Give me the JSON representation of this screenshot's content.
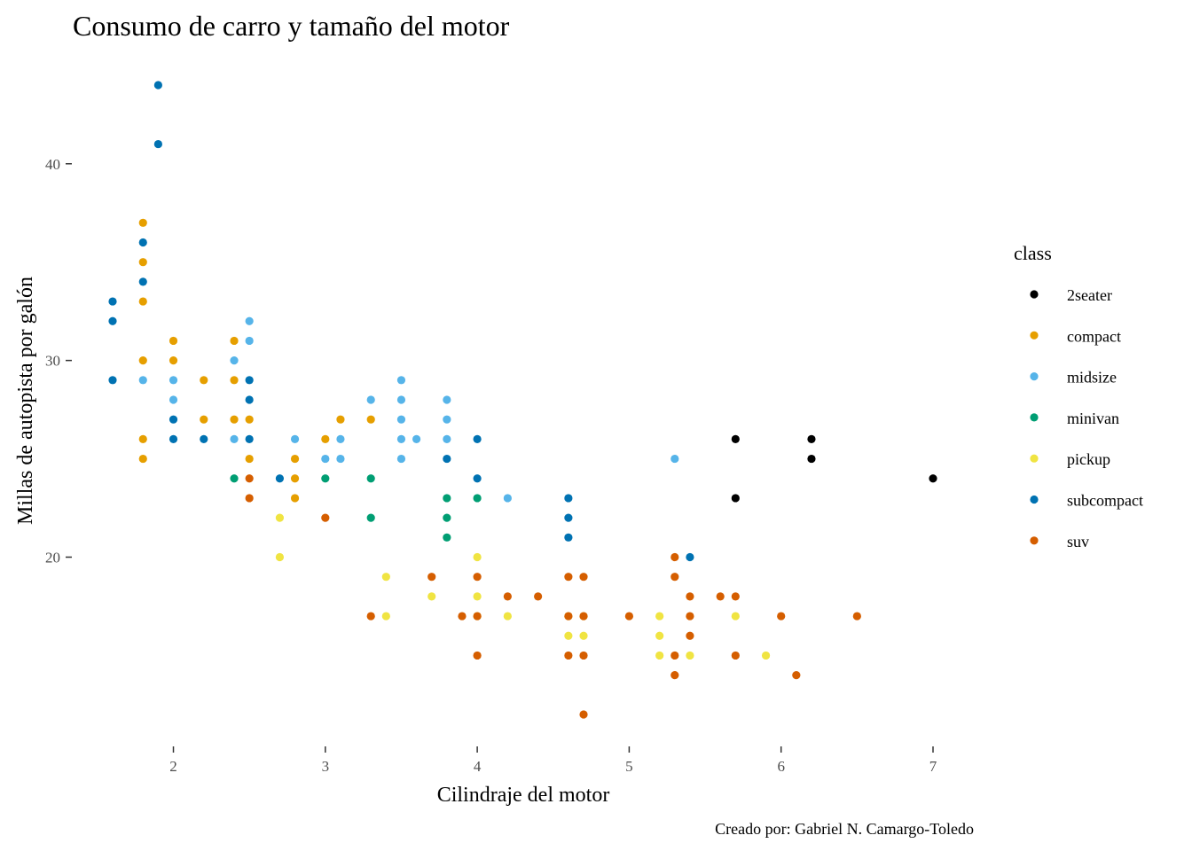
{
  "chart_data": {
    "type": "scatter",
    "title": "Consumo de carro y tamaño del motor",
    "xlabel": "Cilindraje del motor",
    "ylabel": "Millas de autopista por galón",
    "caption": "Creado por: Gabriel N. Camargo-Toledo",
    "xlim": [
      1.6,
      7.0
    ],
    "ylim": [
      12,
      44
    ],
    "x_ticks": [
      2,
      3,
      4,
      5,
      6,
      7
    ],
    "y_ticks": [
      20,
      30,
      40
    ],
    "grid": false,
    "legend": {
      "title": "class",
      "position": "right"
    },
    "series": [
      {
        "name": "2seater",
        "color": "#000000",
        "points": [
          [
            5.7,
            26
          ],
          [
            5.7,
            23
          ],
          [
            6.2,
            26
          ],
          [
            6.2,
            25
          ],
          [
            7.0,
            24
          ]
        ]
      },
      {
        "name": "compact",
        "color": "#E69F00",
        "points": [
          [
            1.8,
            37
          ],
          [
            1.8,
            35
          ],
          [
            1.8,
            33
          ],
          [
            1.8,
            30
          ],
          [
            1.8,
            26
          ],
          [
            1.8,
            25
          ],
          [
            2.0,
            31
          ],
          [
            2.0,
            30
          ],
          [
            2.2,
            29
          ],
          [
            2.2,
            27
          ],
          [
            2.4,
            31
          ],
          [
            2.4,
            29
          ],
          [
            2.4,
            27
          ],
          [
            2.5,
            27
          ],
          [
            2.5,
            25
          ],
          [
            2.8,
            25
          ],
          [
            2.8,
            24
          ],
          [
            2.8,
            23
          ],
          [
            3.0,
            26
          ],
          [
            3.1,
            27
          ],
          [
            3.3,
            27
          ]
        ]
      },
      {
        "name": "midsize",
        "color": "#56B4E9",
        "points": [
          [
            1.8,
            29
          ],
          [
            2.0,
            29
          ],
          [
            2.0,
            28
          ],
          [
            2.4,
            30
          ],
          [
            2.4,
            26
          ],
          [
            2.5,
            32
          ],
          [
            2.5,
            31
          ],
          [
            2.8,
            26
          ],
          [
            3.0,
            25
          ],
          [
            3.1,
            26
          ],
          [
            3.1,
            25
          ],
          [
            3.3,
            28
          ],
          [
            3.5,
            29
          ],
          [
            3.5,
            28
          ],
          [
            3.5,
            27
          ],
          [
            3.5,
            26
          ],
          [
            3.5,
            25
          ],
          [
            3.6,
            26
          ],
          [
            3.8,
            28
          ],
          [
            3.8,
            27
          ],
          [
            3.8,
            26
          ],
          [
            4.2,
            23
          ],
          [
            5.3,
            25
          ]
        ]
      },
      {
        "name": "minivan",
        "color": "#009E73",
        "points": [
          [
            2.4,
            24
          ],
          [
            3.0,
            24
          ],
          [
            3.3,
            24
          ],
          [
            3.3,
            22
          ],
          [
            3.8,
            23
          ],
          [
            3.8,
            22
          ],
          [
            3.8,
            21
          ],
          [
            4.0,
            23
          ]
        ]
      },
      {
        "name": "pickup",
        "color": "#F0E442",
        "points": [
          [
            2.7,
            22
          ],
          [
            2.7,
            20
          ],
          [
            3.4,
            19
          ],
          [
            3.4,
            17
          ],
          [
            3.7,
            18
          ],
          [
            4.0,
            20
          ],
          [
            4.0,
            18
          ],
          [
            4.0,
            17
          ],
          [
            4.2,
            17
          ],
          [
            4.6,
            17
          ],
          [
            4.6,
            16
          ],
          [
            4.7,
            17
          ],
          [
            4.7,
            16
          ],
          [
            5.2,
            17
          ],
          [
            5.2,
            16
          ],
          [
            5.2,
            15
          ],
          [
            5.4,
            15
          ],
          [
            5.7,
            17
          ],
          [
            5.9,
            15
          ]
        ]
      },
      {
        "name": "subcompact",
        "color": "#0072B2",
        "points": [
          [
            1.6,
            33
          ],
          [
            1.6,
            32
          ],
          [
            1.6,
            29
          ],
          [
            1.8,
            36
          ],
          [
            1.8,
            34
          ],
          [
            1.9,
            44
          ],
          [
            1.9,
            41
          ],
          [
            2.0,
            27
          ],
          [
            2.0,
            26
          ],
          [
            2.2,
            26
          ],
          [
            2.5,
            29
          ],
          [
            2.5,
            28
          ],
          [
            2.5,
            26
          ],
          [
            2.7,
            24
          ],
          [
            3.8,
            25
          ],
          [
            4.0,
            26
          ],
          [
            4.0,
            24
          ],
          [
            4.6,
            23
          ],
          [
            4.6,
            22
          ],
          [
            4.6,
            21
          ],
          [
            5.4,
            20
          ]
        ]
      },
      {
        "name": "suv",
        "color": "#D55E00",
        "points": [
          [
            2.5,
            24
          ],
          [
            2.5,
            23
          ],
          [
            3.0,
            22
          ],
          [
            3.3,
            17
          ],
          [
            3.7,
            19
          ],
          [
            3.9,
            17
          ],
          [
            4.0,
            19
          ],
          [
            4.0,
            17
          ],
          [
            4.0,
            15
          ],
          [
            4.2,
            18
          ],
          [
            4.4,
            18
          ],
          [
            4.6,
            19
          ],
          [
            4.6,
            17
          ],
          [
            4.6,
            15
          ],
          [
            4.7,
            19
          ],
          [
            4.7,
            17
          ],
          [
            4.7,
            15
          ],
          [
            4.7,
            12
          ],
          [
            5.0,
            17
          ],
          [
            5.3,
            20
          ],
          [
            5.3,
            19
          ],
          [
            5.3,
            15
          ],
          [
            5.3,
            14
          ],
          [
            5.4,
            18
          ],
          [
            5.4,
            17
          ],
          [
            5.4,
            16
          ],
          [
            5.6,
            18
          ],
          [
            5.7,
            18
          ],
          [
            5.7,
            15
          ],
          [
            6.0,
            17
          ],
          [
            6.1,
            14
          ],
          [
            6.5,
            17
          ]
        ]
      }
    ]
  }
}
